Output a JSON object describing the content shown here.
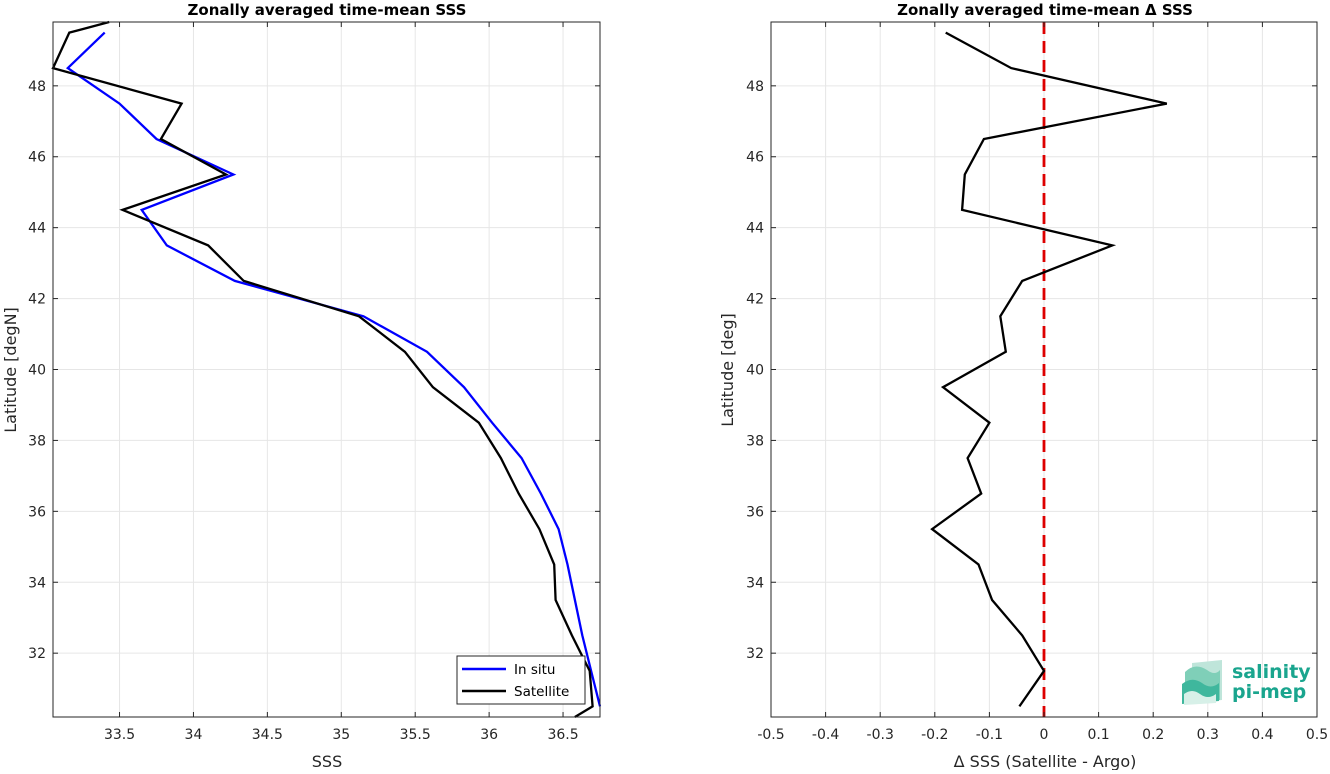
{
  "chart_data": [
    {
      "type": "line",
      "title": "Zonally averaged time-mean SSS",
      "xlabel": "SSS",
      "ylabel": "Latitude [degN]",
      "xlim": [
        33.05,
        36.75
      ],
      "ylim": [
        30.2,
        49.8
      ],
      "xticks": [
        33.5,
        34,
        34.5,
        35,
        35.5,
        36,
        36.5
      ],
      "xtick_labels": [
        "33.5",
        "34",
        "34.5",
        "35",
        "35.5",
        "36",
        "36.5"
      ],
      "yticks": [
        32,
        34,
        36,
        38,
        40,
        42,
        44,
        46,
        48
      ],
      "ytick_labels": [
        "32",
        "34",
        "36",
        "38",
        "40",
        "42",
        "44",
        "46",
        "48"
      ],
      "grid": true,
      "legend_location": "bottom-right",
      "series": [
        {
          "name": "In situ",
          "color": "#0000ff",
          "points": [
            [
              33.4,
              49.5
            ],
            [
              33.15,
              48.5
            ],
            [
              33.5,
              47.5
            ],
            [
              33.75,
              46.5
            ],
            [
              34.27,
              45.5
            ],
            [
              33.65,
              44.5
            ],
            [
              33.82,
              43.5
            ],
            [
              34.28,
              42.5
            ],
            [
              35.15,
              41.5
            ],
            [
              35.58,
              40.5
            ],
            [
              35.83,
              39.5
            ],
            [
              36.02,
              38.5
            ],
            [
              36.22,
              37.5
            ],
            [
              36.35,
              36.5
            ],
            [
              36.47,
              35.5
            ],
            [
              36.53,
              34.5
            ],
            [
              36.58,
              33.5
            ],
            [
              36.63,
              32.5
            ],
            [
              36.69,
              31.5
            ],
            [
              36.75,
              30.5
            ]
          ]
        },
        {
          "name": "Satellite",
          "color": "#000000",
          "points": [
            [
              33.43,
              49.8
            ],
            [
              33.25,
              49.6
            ],
            [
              33.16,
              49.5
            ],
            [
              33.05,
              48.5
            ],
            [
              33.92,
              47.5
            ],
            [
              33.78,
              46.5
            ],
            [
              34.22,
              45.5
            ],
            [
              33.52,
              44.5
            ],
            [
              34.1,
              43.5
            ],
            [
              34.34,
              42.5
            ],
            [
              35.12,
              41.5
            ],
            [
              35.43,
              40.5
            ],
            [
              35.62,
              39.5
            ],
            [
              35.93,
              38.5
            ],
            [
              36.08,
              37.5
            ],
            [
              36.2,
              36.5
            ],
            [
              36.34,
              35.5
            ],
            [
              36.44,
              34.5
            ],
            [
              36.45,
              33.5
            ],
            [
              36.56,
              32.5
            ],
            [
              36.68,
              31.5
            ],
            [
              36.7,
              30.5
            ],
            [
              36.58,
              30.2
            ]
          ]
        }
      ]
    },
    {
      "type": "line",
      "title": "Zonally averaged time-mean Δ SSS",
      "xlabel": "Δ SSS (Satellite - Argo)",
      "ylabel": "Latitude [deg]",
      "xlim": [
        -0.5,
        0.5
      ],
      "ylim": [
        30.2,
        49.8
      ],
      "xticks": [
        -0.5,
        -0.4,
        -0.3,
        -0.2,
        -0.1,
        0,
        0.1,
        0.2,
        0.3,
        0.4,
        0.5
      ],
      "xtick_labels": [
        "-0.5",
        "-0.4",
        "-0.3",
        "-0.2",
        "-0.1",
        "0",
        "0.1",
        "0.2",
        "0.3",
        "0.4",
        "0.5"
      ],
      "yticks": [
        32,
        34,
        36,
        38,
        40,
        42,
        44,
        46,
        48
      ],
      "ytick_labels": [
        "32",
        "34",
        "36",
        "38",
        "40",
        "42",
        "44",
        "46",
        "48"
      ],
      "grid": true,
      "reference_line": {
        "x": 0,
        "color": "#dd0000",
        "style": "dashed"
      },
      "series": [
        {
          "color": "#000000",
          "points": [
            [
              -0.18,
              49.5
            ],
            [
              -0.06,
              48.5
            ],
            [
              0.225,
              47.5
            ],
            [
              -0.11,
              46.5
            ],
            [
              -0.145,
              45.5
            ],
            [
              -0.15,
              44.5
            ],
            [
              0.125,
              43.5
            ],
            [
              -0.04,
              42.5
            ],
            [
              -0.08,
              41.5
            ],
            [
              -0.07,
              40.5
            ],
            [
              -0.185,
              39.5
            ],
            [
              -0.1,
              38.5
            ],
            [
              -0.14,
              37.5
            ],
            [
              -0.115,
              36.5
            ],
            [
              -0.205,
              35.5
            ],
            [
              -0.12,
              34.5
            ],
            [
              -0.095,
              33.5
            ],
            [
              -0.04,
              32.5
            ],
            [
              0,
              31.5
            ],
            [
              -0.045,
              30.5
            ]
          ]
        }
      ]
    }
  ],
  "logo": {
    "line1": "salinity",
    "line2": "pi-mep",
    "color": "#1aa58e"
  }
}
